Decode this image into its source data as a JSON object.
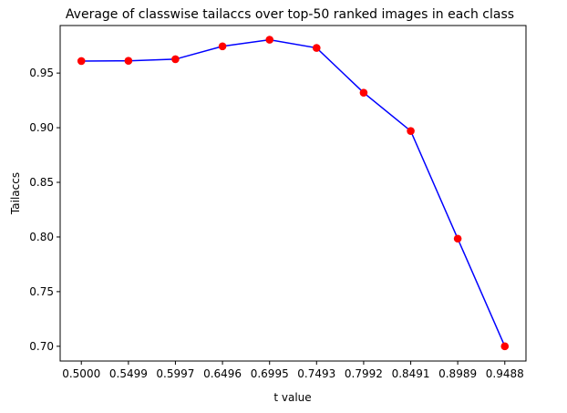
{
  "chart_data": {
    "type": "line",
    "title": "Average of classwise tailaccs over top-50 ranked images in each class",
    "xlabel": "t value",
    "ylabel": "Tailaccs",
    "x_tick_labels": [
      "0.5000",
      "0.5499",
      "0.5997",
      "0.6496",
      "0.6995",
      "0.7493",
      "0.7992",
      "0.8491",
      "0.8989",
      "0.9488"
    ],
    "y_ticks": [
      0.7,
      0.75,
      0.8,
      0.85,
      0.9,
      0.95
    ],
    "y_tick_labels": [
      "0.70",
      "0.75",
      "0.80",
      "0.85",
      "0.90",
      "0.95"
    ],
    "ylim": [
      0.6865,
      0.9935
    ],
    "grid": false,
    "series": [
      {
        "x": [
          0.5,
          0.5499,
          0.5997,
          0.6496,
          0.6995,
          0.7493,
          0.7992,
          0.8491,
          0.8989,
          0.9488
        ],
        "y": [
          0.961,
          0.9612,
          0.9627,
          0.9745,
          0.9805,
          0.973,
          0.932,
          0.897,
          0.7985,
          0.7
        ],
        "line_color": "#0000ff",
        "marker_color": "#ff0000"
      }
    ]
  }
}
